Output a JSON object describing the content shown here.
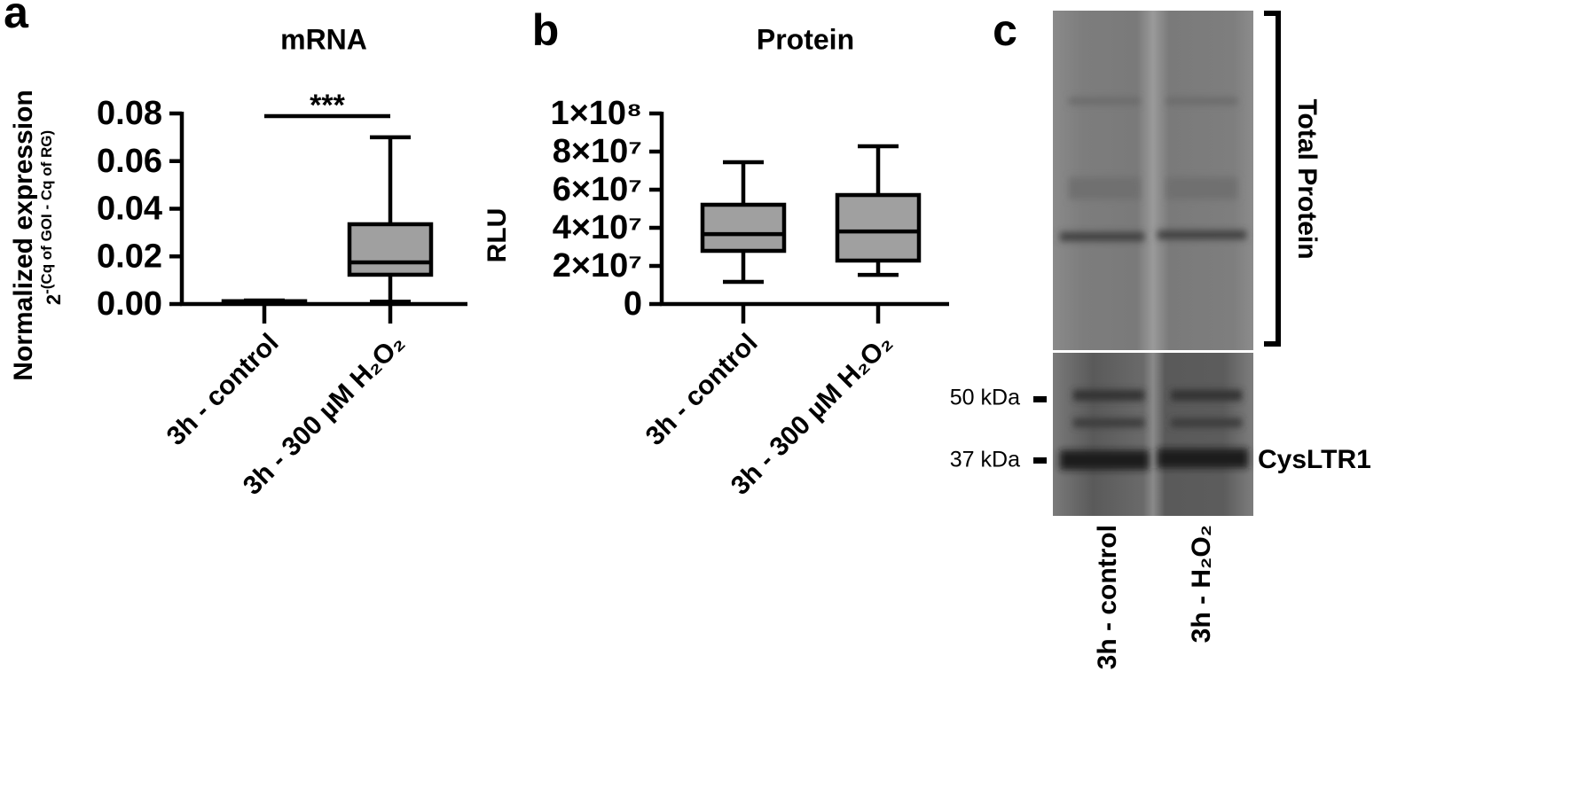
{
  "chart_data": [
    {
      "type": "box",
      "panel": "a",
      "title": "mRNA",
      "ylabel": "Normalized expression",
      "ylabel_base": "2",
      "ylabel_sup": "-(Cq of GOI - Cq of RG)",
      "categories": [
        "3h - control",
        "3h - 300 µM H₂O₂"
      ],
      "stats": [
        {
          "min": 0.0005,
          "q1": 0.0008,
          "median": 0.001,
          "q3": 0.0012,
          "max": 0.0015
        },
        {
          "min": 0.001,
          "q1": 0.0123,
          "median": 0.0175,
          "q3": 0.0335,
          "max": 0.07
        }
      ],
      "color": "#a0a0a0",
      "significance": "***",
      "ylim": [
        0,
        0.08
      ],
      "yticks": [
        {
          "value": 0,
          "label": "0.00"
        },
        {
          "value": 0.02,
          "label": "0.02"
        },
        {
          "value": 0.04,
          "label": "0.04"
        },
        {
          "value": 0.06,
          "label": "0.06"
        },
        {
          "value": 0.08,
          "label": "0.08"
        }
      ]
    },
    {
      "type": "box",
      "panel": "b",
      "title": "Protein",
      "ylabel": "RLU",
      "categories": [
        "3h - control",
        "3h - 300 µM H₂O₂"
      ],
      "stats": [
        {
          "min": 11600000,
          "q1": 27900000,
          "median": 36700000,
          "q3": 52100000,
          "max": 74400000
        },
        {
          "min": 15300000,
          "q1": 22800000,
          "median": 38100000,
          "q3": 57200000,
          "max": 82800000
        }
      ],
      "color": "#a0a0a0",
      "ylim": [
        0,
        100000000
      ],
      "yticks": [
        0,
        {
          "value": 20000000,
          "label": "2×10⁷"
        },
        {
          "value": 40000000,
          "label": "4×10⁷"
        },
        {
          "value": 60000000,
          "label": "6×10⁷"
        },
        {
          "value": 80000000,
          "label": "8×10⁷"
        },
        {
          "value": 100000000,
          "label": "1×10⁸"
        }
      ]
    }
  ],
  "blot": {
    "panel": "c",
    "bracket_label": "Total Protein",
    "markers": [
      "50 kDa",
      "37 kDa"
    ],
    "band_label": "CysLTR1",
    "lanes": [
      "3h - control",
      "3h - H₂O₂"
    ]
  }
}
